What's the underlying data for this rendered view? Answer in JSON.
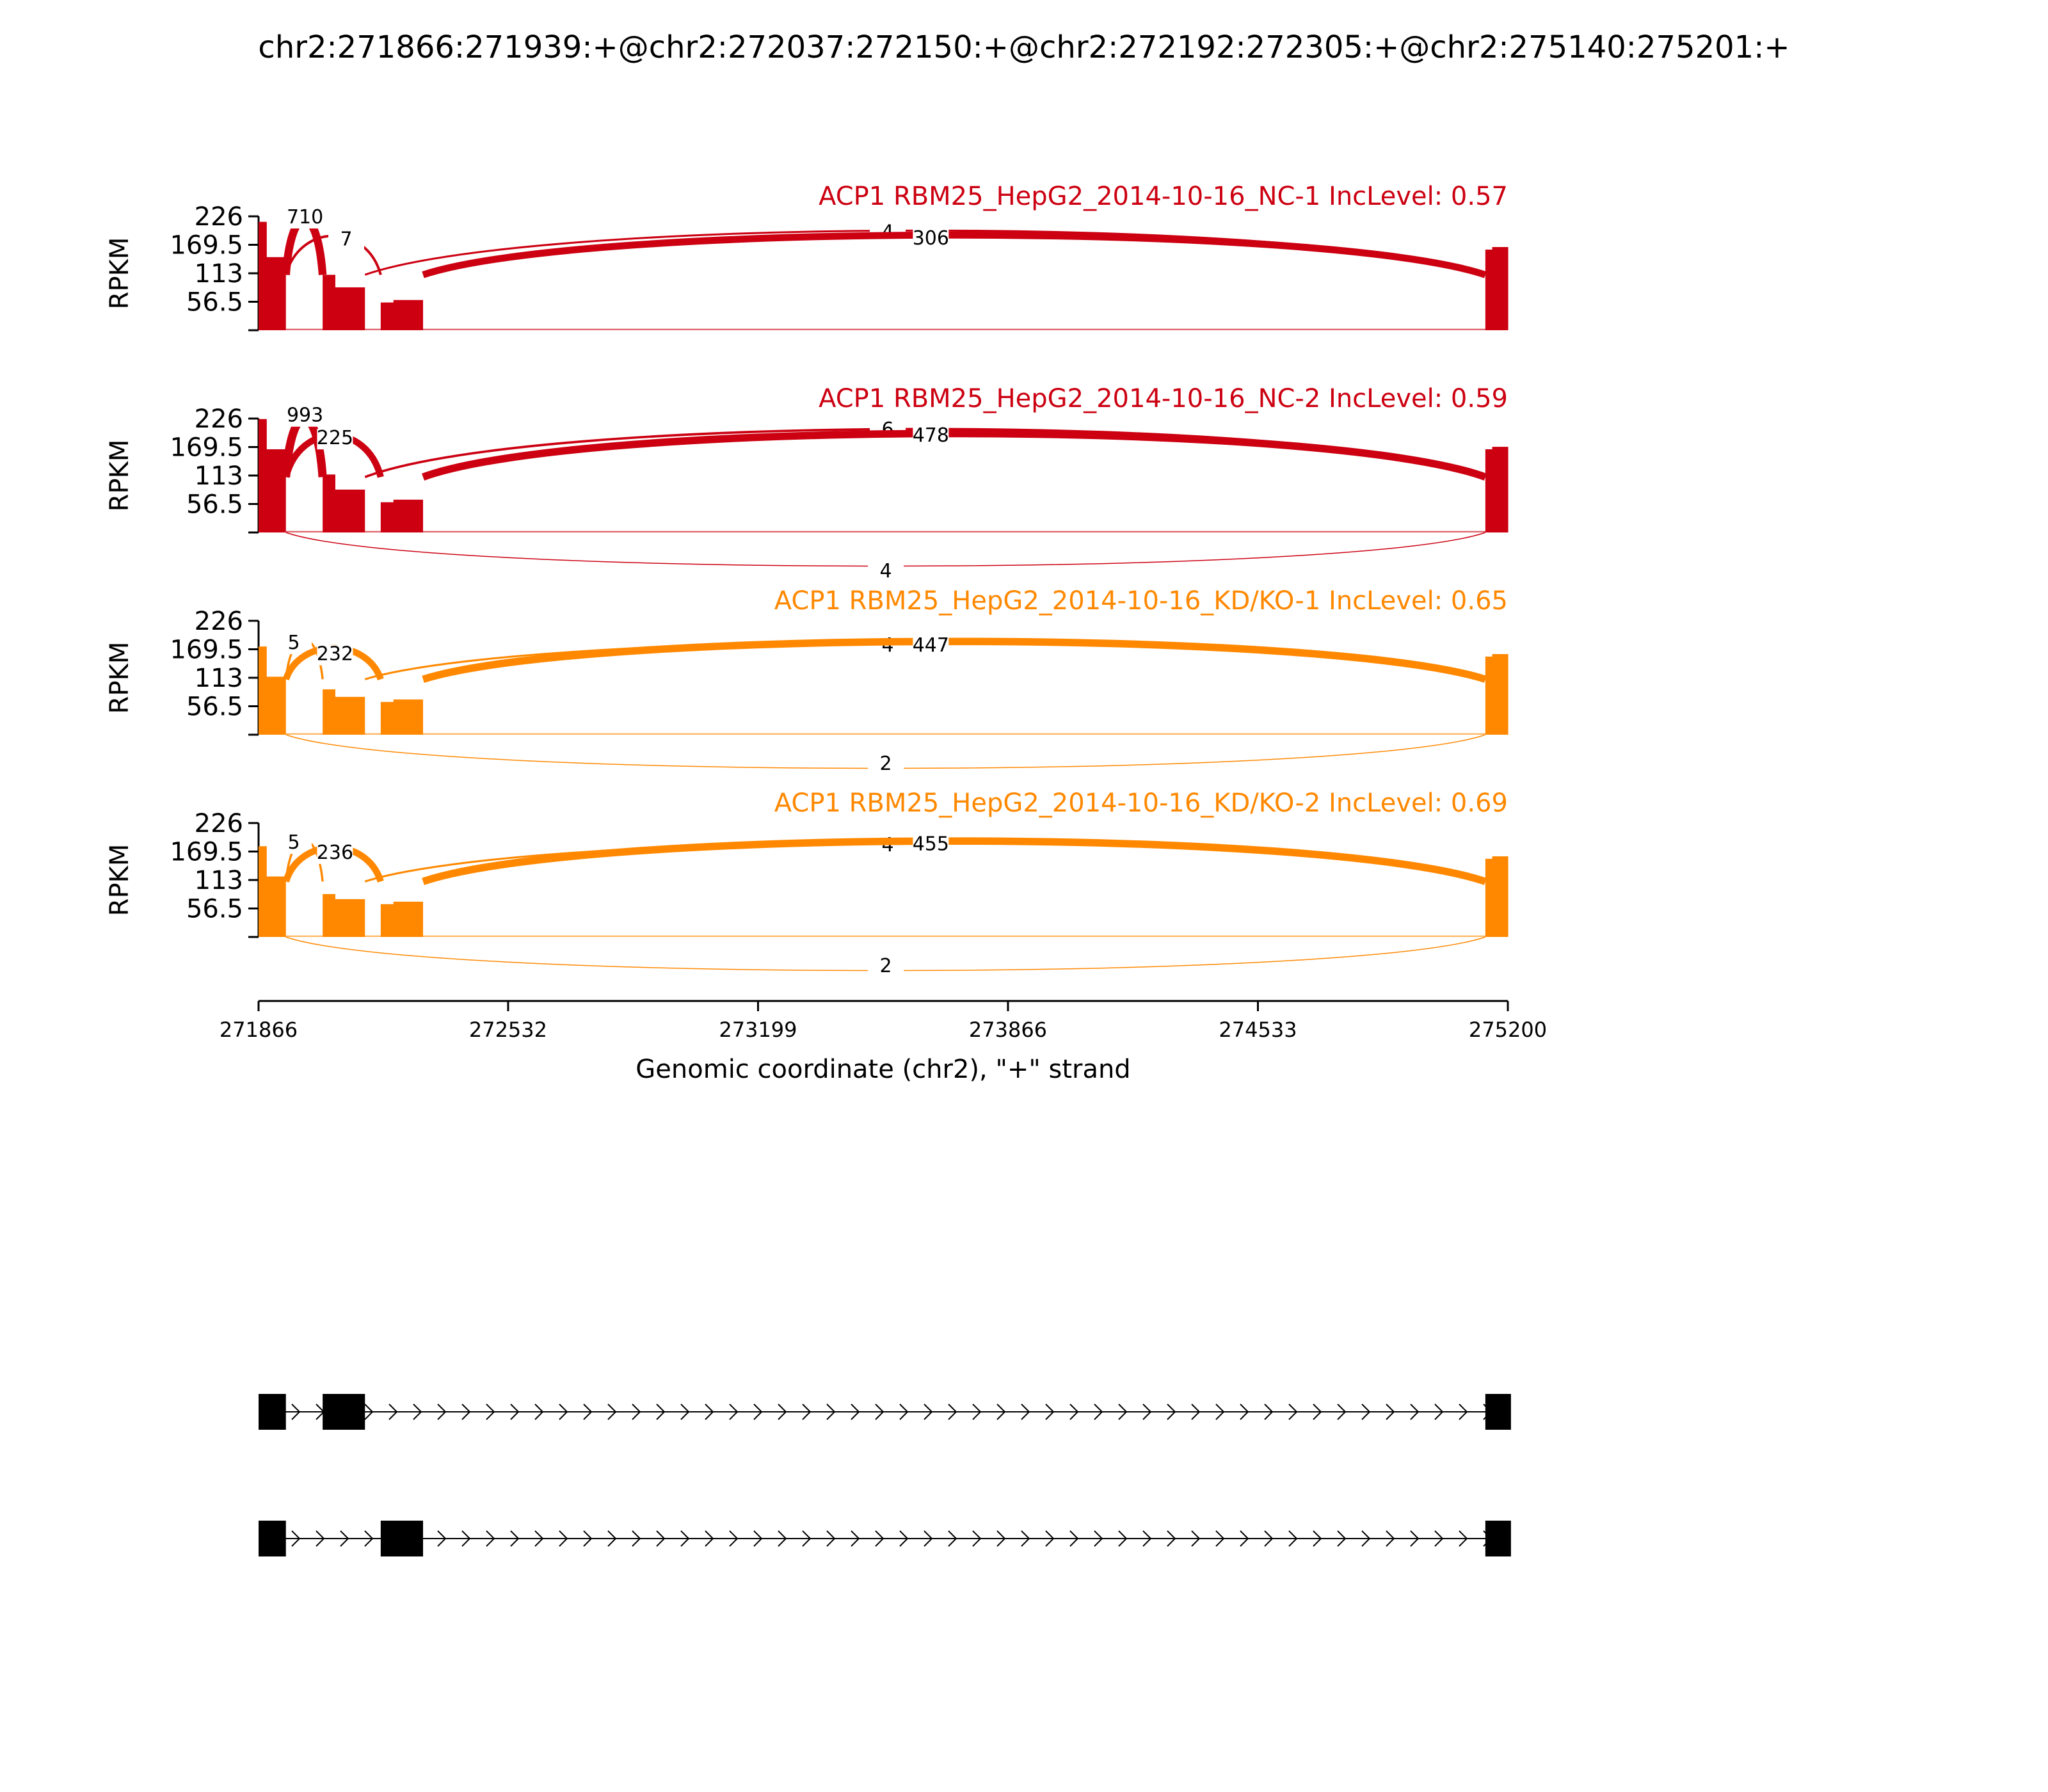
{
  "title": "chr2:271866:271939:+@chr2:272037:272150:+@chr2:272192:272305:+@chr2:275140:275201:+",
  "chart_data": {
    "type": "sashimi",
    "xlabel": "Genomic coordinate (chr2), \"+\" strand",
    "ylabel": "RPKM",
    "xlim": [
      271866,
      275200
    ],
    "xticks": [
      "271866",
      "272532",
      "273199",
      "273866",
      "274533",
      "275200"
    ],
    "ylim": [
      0,
      226
    ],
    "yticks": [
      "226",
      "169.5",
      "113",
      "56.5"
    ],
    "exons": [
      [
        271866,
        271939
      ],
      [
        272037,
        272150
      ],
      [
        272192,
        272305
      ],
      [
        275140,
        275201
      ]
    ],
    "tracks": [
      {
        "label": "ACP1 RBM25_HepG2_2014-10-16_NC-1 IncLevel: 0.57",
        "color": "#cc0011",
        "coverage": {
          "exon1": [
            215,
            145
          ],
          "exon2": [
            110,
            85
          ],
          "exon3": [
            55,
            60
          ],
          "exon4": [
            160,
            165
          ],
          "intron": 3
        },
        "junctions": [
          {
            "from": 271939,
            "to": 272037,
            "count": "710",
            "side": "above",
            "label_x": 271990,
            "label_y": 212
          },
          {
            "from": 271939,
            "to": 272192,
            "count": "7",
            "side": "above",
            "label_x": 272100,
            "label_y": 168
          },
          {
            "from": 272150,
            "to": 275140,
            "count": "4",
            "side": "above",
            "label_x": 273545,
            "label_y": 182
          },
          {
            "from": 272305,
            "to": 275140,
            "count": "306",
            "side": "above",
            "label_x": 273660,
            "label_y": 170
          }
        ]
      },
      {
        "label": "ACP1 RBM25_HepG2_2014-10-16_NC-2 IncLevel: 0.59",
        "color": "#cc0011",
        "coverage": {
          "exon1": [
            225,
            165
          ],
          "exon2": [
            115,
            85
          ],
          "exon3": [
            60,
            65
          ],
          "exon4": [
            165,
            170
          ],
          "intron": 3
        },
        "junctions": [
          {
            "from": 271939,
            "to": 272037,
            "count": "993",
            "side": "above",
            "label_x": 271990,
            "label_y": 220
          },
          {
            "from": 271939,
            "to": 272192,
            "count": "225",
            "side": "above",
            "label_x": 272070,
            "label_y": 175
          },
          {
            "from": 272150,
            "to": 275140,
            "count": "6",
            "side": "above",
            "label_x": 273545,
            "label_y": 192
          },
          {
            "from": 272305,
            "to": 275140,
            "count": "478",
            "side": "above",
            "label_x": 273660,
            "label_y": 180
          },
          {
            "from": 271939,
            "to": 275140,
            "count": "4",
            "side": "below",
            "label_x": 273540,
            "label_y": -70
          }
        ]
      },
      {
        "label": "ACP1 RBM25_HepG2_2014-10-16_KD/KO-1 IncLevel: 0.65",
        "color": "#ff8800",
        "coverage": {
          "exon1": [
            175,
            115
          ],
          "exon2": [
            90,
            75
          ],
          "exon3": [
            65,
            70
          ],
          "exon4": [
            155,
            160
          ],
          "intron": 3
        },
        "junctions": [
          {
            "from": 271939,
            "to": 272037,
            "count": "5",
            "side": "above",
            "label_x": 271960,
            "label_y": 170
          },
          {
            "from": 271939,
            "to": 272192,
            "count": "232",
            "side": "above",
            "label_x": 272070,
            "label_y": 148
          },
          {
            "from": 272150,
            "to": 275140,
            "count": "4",
            "side": "above",
            "label_x": 273545,
            "label_y": 165
          },
          {
            "from": 272305,
            "to": 275140,
            "count": "447",
            "side": "above",
            "label_x": 273660,
            "label_y": 165
          },
          {
            "from": 271939,
            "to": 275140,
            "count": "2",
            "side": "below",
            "label_x": 273540,
            "label_y": -55
          }
        ]
      },
      {
        "label": "ACP1 RBM25_HepG2_2014-10-16_KD/KO-2 IncLevel: 0.69",
        "color": "#ff8800",
        "coverage": {
          "exon1": [
            180,
            120
          ],
          "exon2": [
            85,
            75
          ],
          "exon3": [
            65,
            70
          ],
          "exon4": [
            155,
            160
          ],
          "intron": 3
        },
        "junctions": [
          {
            "from": 271939,
            "to": 272037,
            "count": "5",
            "side": "above",
            "label_x": 271960,
            "label_y": 175
          },
          {
            "from": 271939,
            "to": 272192,
            "count": "236",
            "side": "above",
            "label_x": 272070,
            "label_y": 155
          },
          {
            "from": 272150,
            "to": 275140,
            "count": "4",
            "side": "above",
            "label_x": 273545,
            "label_y": 170
          },
          {
            "from": 272305,
            "to": 275140,
            "count": "455",
            "side": "above",
            "label_x": 273660,
            "label_y": 172
          },
          {
            "from": 271939,
            "to": 275140,
            "count": "2",
            "side": "below",
            "label_x": 273540,
            "label_y": -55
          }
        ]
      }
    ],
    "isoforms": [
      {
        "exons": [
          [
            271866,
            271939
          ],
          [
            272037,
            272150
          ],
          [
            275140,
            275201
          ]
        ]
      },
      {
        "exons": [
          [
            271866,
            271939
          ],
          [
            272192,
            272305
          ],
          [
            275140,
            275201
          ]
        ]
      }
    ]
  }
}
